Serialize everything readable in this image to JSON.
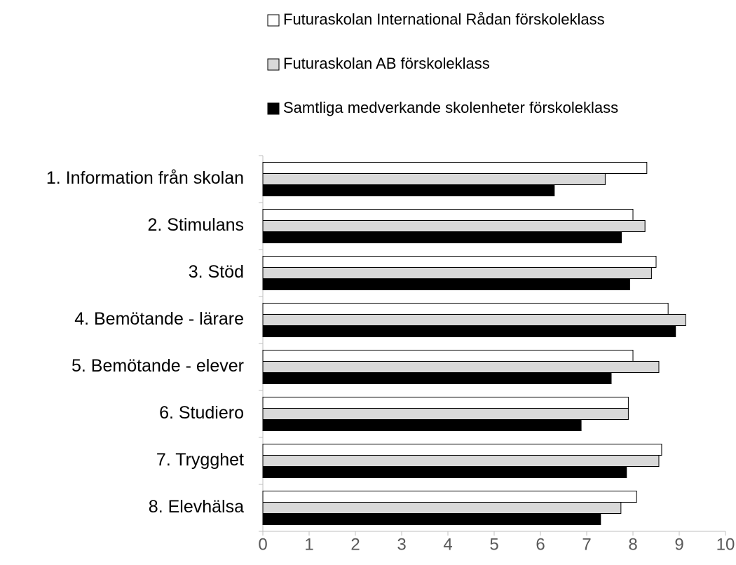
{
  "chart_data": {
    "type": "bar",
    "orientation": "horizontal",
    "categories": [
      "1. Information från skolan",
      "2. Stimulans",
      "3. Stöd",
      "4. Bemötande - lärare",
      "5. Bemötande - elever",
      "6. Studiero",
      "7. Trygghet",
      "8. Elevhälsa"
    ],
    "series": [
      {
        "name": "Futuraskolan International Rådan förskoleklass",
        "color": "#ffffff",
        "values": [
          8.3,
          8.0,
          8.5,
          8.76,
          8.0,
          7.9,
          8.62,
          8.08
        ]
      },
      {
        "name": "Futuraskolan AB förskoleklass",
        "color": "#d9d9d9",
        "values": [
          7.4,
          8.26,
          8.4,
          9.14,
          8.56,
          7.9,
          8.56,
          7.74
        ]
      },
      {
        "name": "Samtliga medverkande skolenheter förskoleklass",
        "color": "#000000",
        "values": [
          6.3,
          7.75,
          7.93,
          8.92,
          7.53,
          6.88,
          7.86,
          7.3
        ]
      }
    ],
    "xlim": [
      0,
      10
    ],
    "xticks": [
      0,
      1,
      2,
      3,
      4,
      5,
      6,
      7,
      8,
      9,
      10
    ],
    "legend": "top"
  }
}
